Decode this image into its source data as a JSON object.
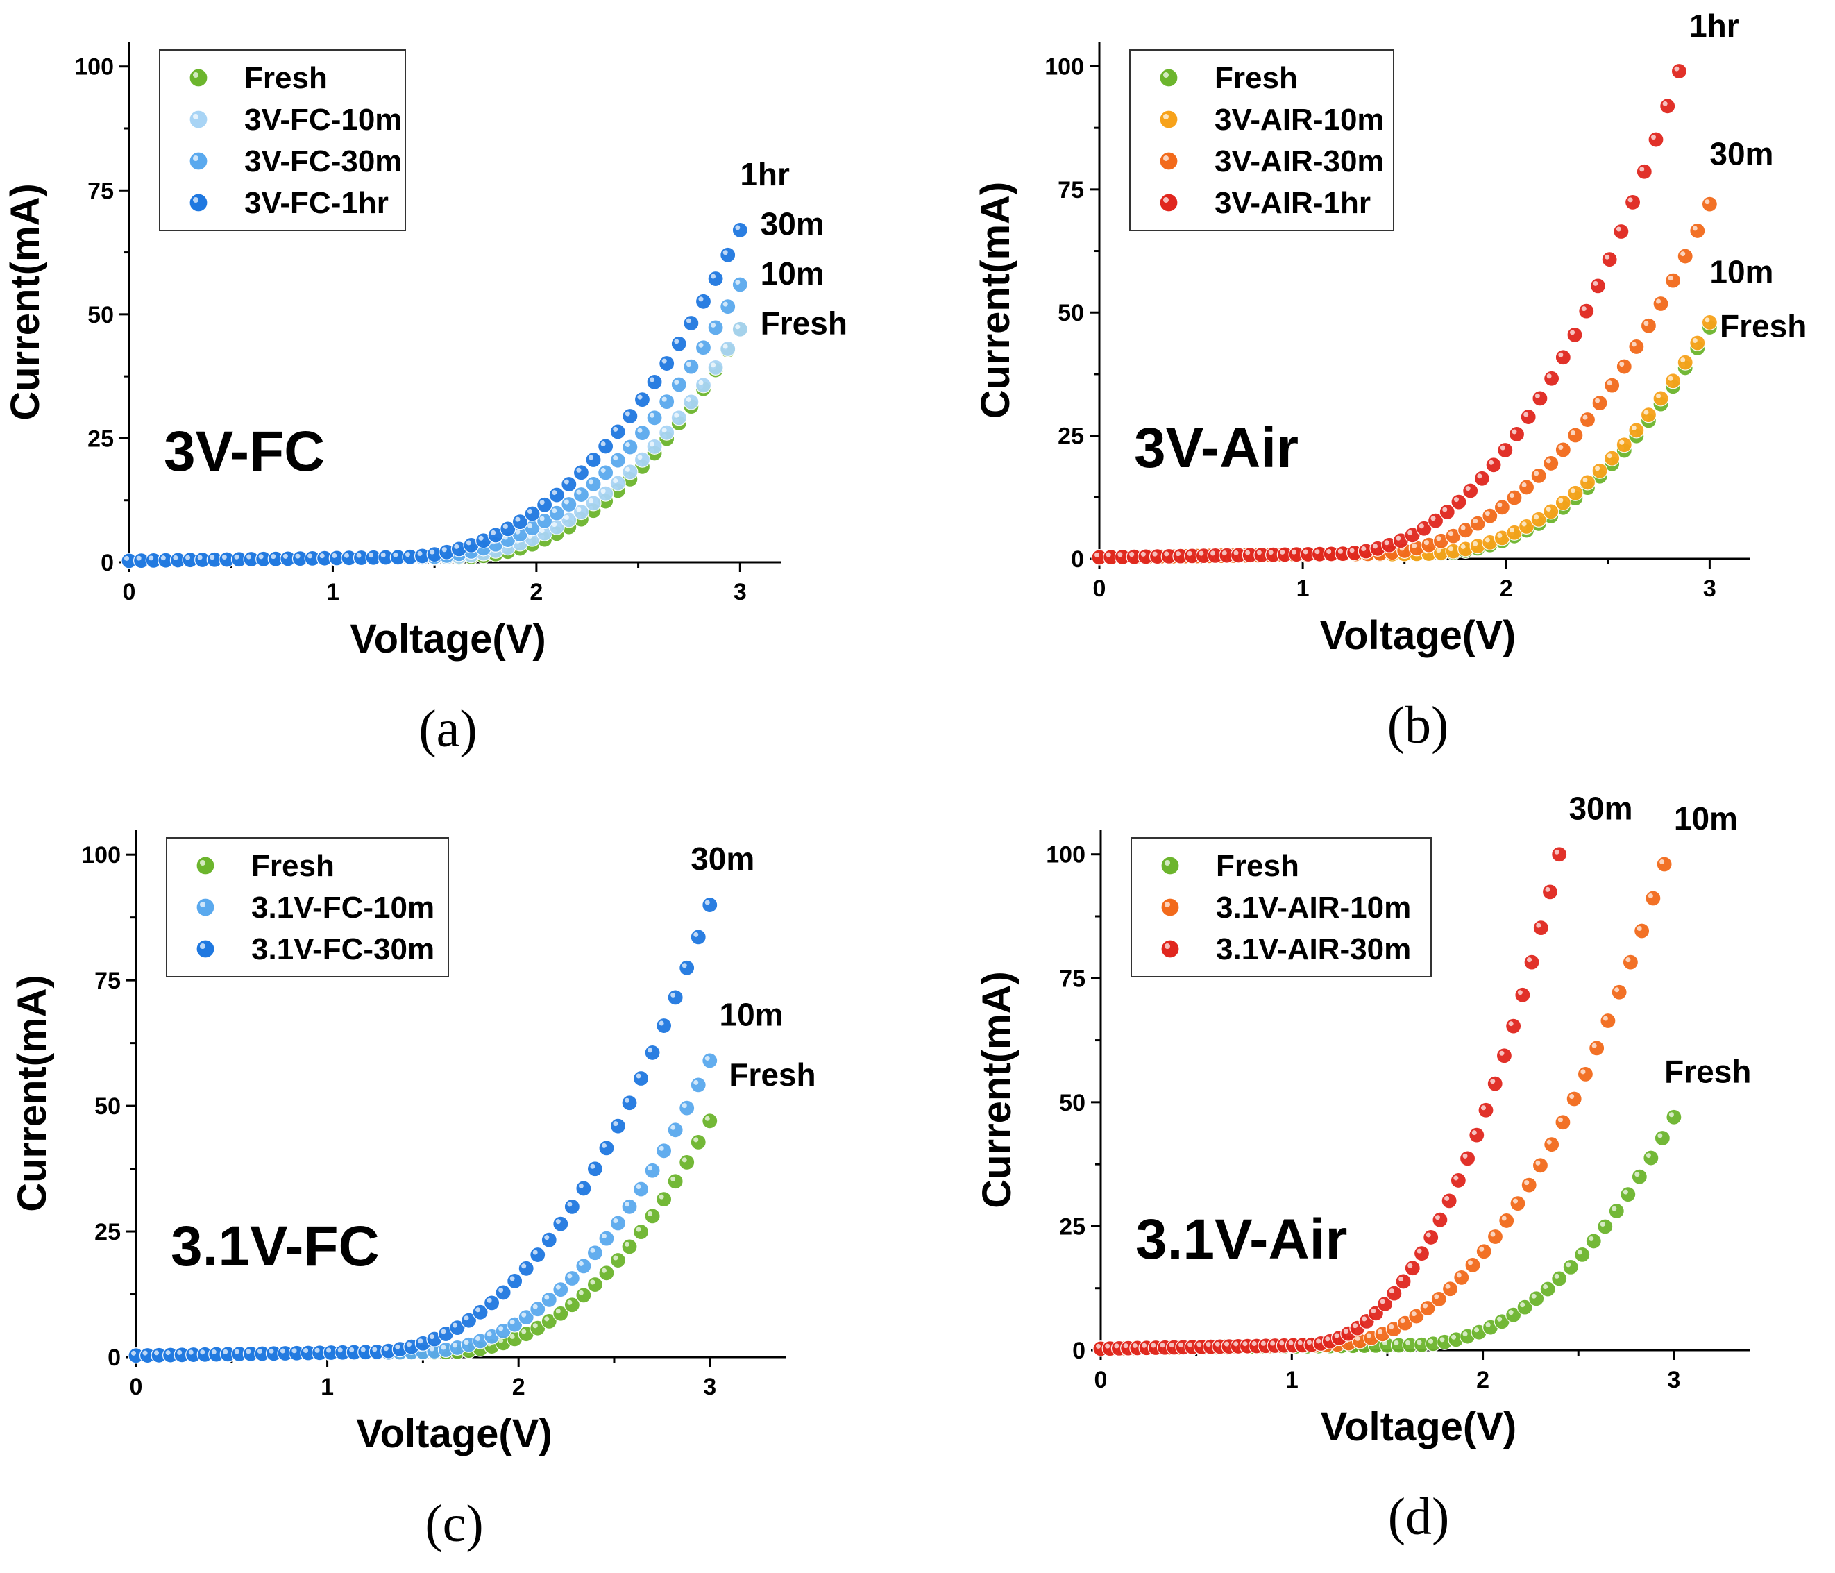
{
  "chart_data": [
    {
      "type": "scatter",
      "panel": "a",
      "caption": "(a)",
      "title": "3V-FC",
      "xlabel": "Voltage(V)",
      "ylabel": "Current(mA)",
      "xlim": [
        0,
        3.2
      ],
      "ylim": [
        0,
        105
      ],
      "xticks": [
        "0",
        "1",
        "2",
        "3"
      ],
      "yticks": [
        "0",
        "25",
        "50",
        "75",
        "100"
      ],
      "grid": false,
      "legend_position": "top-left",
      "series": [
        {
          "name": "Fresh",
          "color": "#6cb52d",
          "onset": 1.6,
          "end_x": 3.0,
          "end_y": 47
        },
        {
          "name": "3V-FC-10m",
          "color": "#a8d4f5",
          "onset": 1.5,
          "end_x": 3.0,
          "end_y": 47
        },
        {
          "name": "3V-FC-30m",
          "color": "#5aa9ee",
          "onset": 1.4,
          "end_x": 3.0,
          "end_y": 56
        },
        {
          "name": "3V-FC-1hr",
          "color": "#1f78e0",
          "onset": 1.3,
          "end_x": 3.0,
          "end_y": 67
        }
      ],
      "annotations": [
        {
          "text": "1hr",
          "x": 3.0,
          "y": 76
        },
        {
          "text": "30m",
          "x": 3.1,
          "y": 66
        },
        {
          "text": "10m",
          "x": 3.1,
          "y": 56
        },
        {
          "text": "Fresh",
          "x": 3.1,
          "y": 46
        }
      ]
    },
    {
      "type": "scatter",
      "panel": "b",
      "caption": "(b)",
      "title": "3V-Air",
      "xlabel": "Voltage(V)",
      "ylabel": "Current(mA)",
      "xlim": [
        0,
        3.2
      ],
      "ylim": [
        0,
        105
      ],
      "xticks": [
        "0",
        "1",
        "2",
        "3"
      ],
      "yticks": [
        "0",
        "25",
        "50",
        "75",
        "100"
      ],
      "grid": false,
      "legend_position": "top-left",
      "series": [
        {
          "name": "Fresh",
          "color": "#6cb52d",
          "onset": 1.6,
          "end_x": 3.0,
          "end_y": 47
        },
        {
          "name": "3V-AIR-10m",
          "color": "#f7a21a",
          "onset": 1.55,
          "end_x": 3.0,
          "end_y": 48
        },
        {
          "name": "3V-AIR-30m",
          "color": "#f26a1b",
          "onset": 1.3,
          "end_x": 3.0,
          "end_y": 72
        },
        {
          "name": "3V-AIR-1hr",
          "color": "#e0261e",
          "onset": 1.15,
          "end_x": 2.85,
          "end_y": 99
        }
      ],
      "annotations": [
        {
          "text": "1hr",
          "x": 2.9,
          "y": 106
        },
        {
          "text": "30m",
          "x": 3.0,
          "y": 80
        },
        {
          "text": "10m",
          "x": 3.0,
          "y": 56
        },
        {
          "text": "Fresh",
          "x": 3.05,
          "y": 45
        }
      ]
    },
    {
      "type": "scatter",
      "panel": "c",
      "caption": "(c)",
      "title": "3.1V-FC",
      "xlabel": "Voltage(V)",
      "ylabel": "Current(mA)",
      "xlim": [
        0,
        3.4
      ],
      "ylim": [
        0,
        105
      ],
      "xticks": [
        "0",
        "1",
        "2",
        "3"
      ],
      "yticks": [
        "0",
        "25",
        "50",
        "75",
        "100"
      ],
      "grid": false,
      "legend_position": "top-left",
      "series": [
        {
          "name": "Fresh",
          "color": "#6cb52d",
          "onset": 1.6,
          "end_x": 3.0,
          "end_y": 47
        },
        {
          "name": "3.1V-FC-10m",
          "color": "#5aa9ee",
          "onset": 1.45,
          "end_x": 3.0,
          "end_y": 59
        },
        {
          "name": "3.1V-FC-30m",
          "color": "#1f78e0",
          "onset": 1.2,
          "end_x": 3.0,
          "end_y": 90
        }
      ],
      "annotations": [
        {
          "text": "30m",
          "x": 2.9,
          "y": 97
        },
        {
          "text": "10m",
          "x": 3.05,
          "y": 66
        },
        {
          "text": "Fresh",
          "x": 3.1,
          "y": 54
        }
      ]
    },
    {
      "type": "scatter",
      "panel": "d",
      "caption": "(d)",
      "title": "3.1V-Air",
      "xlabel": "Voltage(V)",
      "ylabel": "Current(mA)",
      "xlim": [
        0,
        3.4
      ],
      "ylim": [
        0,
        105
      ],
      "xticks": [
        "0",
        "1",
        "2",
        "3"
      ],
      "yticks": [
        "0",
        "25",
        "50",
        "75",
        "100"
      ],
      "grid": false,
      "legend_position": "top-left",
      "series": [
        {
          "name": "Fresh",
          "color": "#6cb52d",
          "onset": 1.6,
          "end_x": 3.0,
          "end_y": 47
        },
        {
          "name": "3.1V-AIR-10m",
          "color": "#f26a1b",
          "onset": 1.15,
          "end_x": 2.95,
          "end_y": 98
        },
        {
          "name": "3.1V-AIR-30m",
          "color": "#e0261e",
          "onset": 1.05,
          "end_x": 2.4,
          "end_y": 100
        }
      ],
      "annotations": [
        {
          "text": "30m",
          "x": 2.45,
          "y": 107
        },
        {
          "text": "10m",
          "x": 3.0,
          "y": 105
        },
        {
          "text": "Fresh",
          "x": 2.95,
          "y": 54
        }
      ]
    }
  ]
}
